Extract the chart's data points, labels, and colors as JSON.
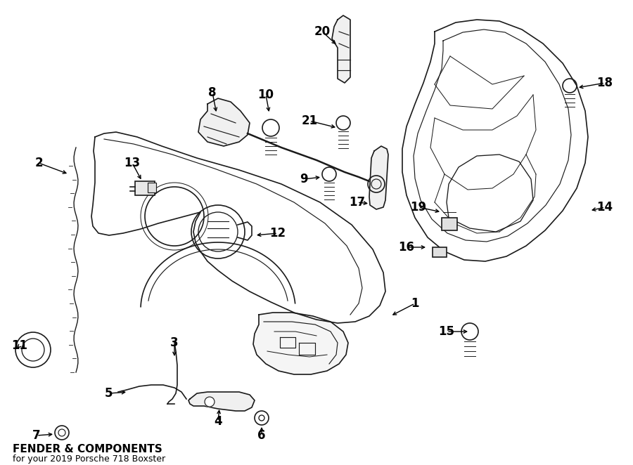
{
  "title": "FENDER & COMPONENTS",
  "subtitle": "for your 2019 Porsche 718 Boxster",
  "bg_color": "#ffffff",
  "line_color": "#1a1a1a",
  "label_fontsize": 12,
  "title_fontsize": 11
}
